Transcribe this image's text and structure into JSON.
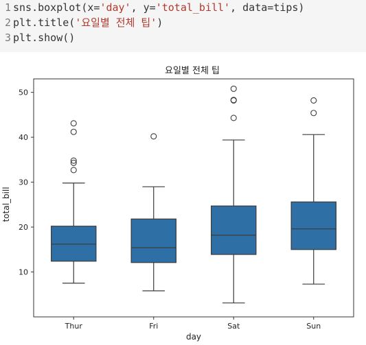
{
  "code_cell": {
    "lines": [
      {
        "number": "1",
        "text": "sns.boxplot(x='day', y='total_bill', data=tips)"
      },
      {
        "number": "2",
        "text": "plt.title('요일별 전체 팁')"
      },
      {
        "number": "3",
        "text": "plt.show()"
      }
    ]
  },
  "colors": {
    "box_fill": "#2e6fa5",
    "line": "#3b3b3b",
    "code_bg": "#f5f5f5",
    "string": "#b03a2e"
  },
  "chart_data": {
    "type": "boxplot",
    "title": "요일별 전체 팁",
    "xlabel": "day",
    "ylabel": "total_bill",
    "ylim": [
      0,
      53
    ],
    "yticks": [
      10,
      20,
      30,
      40,
      50
    ],
    "grid": false,
    "legend": "none",
    "categories": [
      "Thur",
      "Fri",
      "Sat",
      "Sun"
    ],
    "boxes": [
      {
        "category": "Thur",
        "whisker_low": 7.5,
        "q1": 12.4,
        "median": 16.2,
        "q3": 20.2,
        "whisker_high": 29.8,
        "outliers": [
          32.7,
          34.3,
          34.8,
          41.2,
          43.1
        ]
      },
      {
        "category": "Fri",
        "whisker_low": 5.8,
        "q1": 12.1,
        "median": 15.4,
        "q3": 21.8,
        "whisker_high": 28.97,
        "outliers": [
          40.2
        ]
      },
      {
        "category": "Sat",
        "whisker_low": 3.1,
        "q1": 13.9,
        "median": 18.2,
        "q3": 24.7,
        "whisker_high": 39.4,
        "outliers": [
          44.3,
          48.2,
          48.3,
          50.8
        ]
      },
      {
        "category": "Sun",
        "whisker_low": 7.3,
        "q1": 15.0,
        "median": 19.6,
        "q3": 25.6,
        "whisker_high": 40.6,
        "outliers": [
          45.4,
          48.2
        ]
      }
    ]
  }
}
